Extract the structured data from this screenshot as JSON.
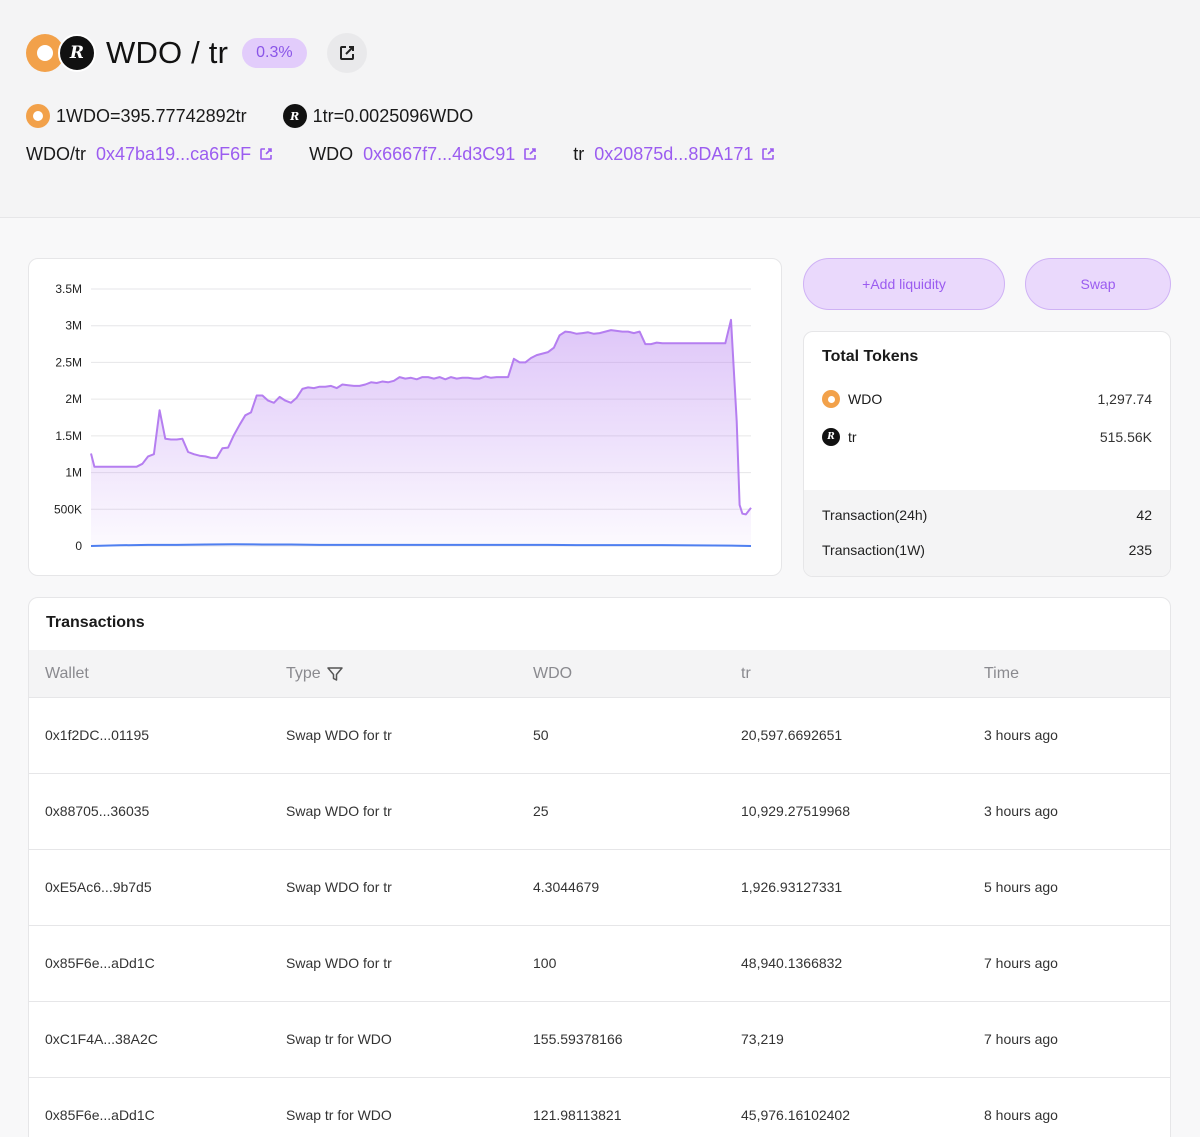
{
  "pair": {
    "title": "WDO / tr",
    "fee": "0.3%",
    "rate_wdo": "1WDO=395.77742892tr",
    "rate_tr": "1tr=0.0025096WDO",
    "token_tr_logo": "R",
    "addresses": [
      {
        "label": "WDO/tr",
        "value": "0x47ba19...ca6F6F"
      },
      {
        "label": "WDO",
        "value": "0x6667f7...4d3C91"
      },
      {
        "label": "tr",
        "value": "0x20875d...8DA171"
      }
    ]
  },
  "actions": {
    "add_liquidity": "+Add liquidity",
    "swap": "Swap"
  },
  "total_tokens": {
    "title": "Total Tokens",
    "items": [
      {
        "name": "WDO",
        "value": "1,297.74"
      },
      {
        "name": "tr",
        "value": "515.56K"
      }
    ],
    "stats": [
      {
        "label": "Transaction(24h)",
        "value": "42"
      },
      {
        "label": "Transaction(1W)",
        "value": "235"
      }
    ]
  },
  "chart_data": {
    "type": "area",
    "ylim": [
      0,
      3500000
    ],
    "y_ticks": [
      "0",
      "500K",
      "1M",
      "1.5M",
      "2M",
      "2.5M",
      "3M",
      "3.5M"
    ],
    "grid": true,
    "colors": {
      "series1": "#b57ef0",
      "series2": "#4f7ff0"
    },
    "series": [
      {
        "values": [
          1260000,
          1080000,
          1080000,
          1080000,
          1080000,
          1080000,
          1080000,
          1080000,
          1080000,
          1080000,
          1120000,
          1220000,
          1250000,
          1850000,
          1460000,
          1450000,
          1450000,
          1460000,
          1280000,
          1250000,
          1230000,
          1220000,
          1200000,
          1200000,
          1330000,
          1340000,
          1510000,
          1650000,
          1780000,
          1820000,
          2050000,
          2050000,
          1980000,
          1950000,
          2030000,
          1980000,
          1950000,
          2020000,
          2140000,
          2160000,
          2150000,
          2170000,
          2170000,
          2180000,
          2150000,
          2200000,
          2190000,
          2180000,
          2180000,
          2200000,
          2230000,
          2220000,
          2240000,
          2230000,
          2250000,
          2300000,
          2280000,
          2290000,
          2270000,
          2300000,
          2300000,
          2280000,
          2300000,
          2270000,
          2300000,
          2280000,
          2290000,
          2290000,
          2280000,
          2280000,
          2310000,
          2290000,
          2300000,
          2300000,
          2300000,
          2550000,
          2500000,
          2500000,
          2560000,
          2600000,
          2620000,
          2640000,
          2700000,
          2870000,
          2920000,
          2910000,
          2890000,
          2900000,
          2910000,
          2890000,
          2900000,
          2920000,
          2940000,
          2930000,
          2920000,
          2920000,
          2900000,
          2920000,
          2750000,
          2750000,
          2770000,
          2760000,
          2760000,
          2760000,
          2760000,
          2760000,
          2760000,
          2760000,
          2760000,
          2760000,
          2760000,
          2760000,
          2760000,
          3080000,
          1700000,
          560000,
          440000,
          430000,
          520000
        ],
        "x": [
          0,
          0.6,
          1,
          2,
          3,
          4,
          5,
          6,
          7,
          8,
          9,
          10,
          11,
          12,
          13,
          14,
          15,
          16,
          17,
          18,
          19,
          20,
          21,
          22,
          23,
          24,
          25,
          26,
          27,
          28,
          29,
          30,
          31,
          32,
          33,
          34,
          35,
          36,
          37,
          38,
          39,
          40,
          41,
          42,
          43,
          44,
          45,
          46,
          47,
          48,
          49,
          50,
          51,
          52,
          53,
          54,
          55,
          56,
          57,
          58,
          59,
          60,
          61,
          62,
          63,
          64,
          65,
          66,
          67,
          68,
          69,
          70,
          71,
          72,
          73,
          74,
          75,
          76,
          77,
          78,
          79,
          80,
          81,
          82,
          83,
          84,
          85,
          86,
          87,
          88,
          89,
          90,
          91,
          92,
          93,
          94,
          95,
          96,
          97,
          98,
          99,
          100,
          101,
          102,
          103,
          104,
          105,
          106,
          107,
          108,
          109,
          110,
          111,
          112,
          113,
          113.5,
          114,
          114.6,
          115.5
        ]
      },
      {
        "values": [
          0,
          10000,
          15000,
          15000,
          20000,
          25000,
          20000,
          20000,
          15000,
          15000,
          15000,
          15000,
          15000,
          15000,
          15000,
          15000,
          15000,
          12000,
          12000,
          12000,
          12000,
          5000,
          0
        ],
        "x": [
          0,
          5,
          10,
          15,
          20,
          25,
          30,
          35,
          40,
          45,
          50,
          55,
          60,
          65,
          70,
          75,
          80,
          85,
          90,
          95,
          100,
          112,
          115.5
        ]
      }
    ]
  },
  "transactions": {
    "title": "Transactions",
    "columns": [
      "Wallet",
      "Type",
      "WDO",
      "tr",
      "Time"
    ],
    "rows": [
      {
        "wallet": "0x1f2DC...01195",
        "type": "Swap WDO for tr",
        "wdo": "50",
        "tr": "20,597.6692651",
        "time": "3 hours ago"
      },
      {
        "wallet": "0x88705...36035",
        "type": "Swap WDO for tr",
        "wdo": "25",
        "tr": "10,929.27519968",
        "time": "3 hours ago"
      },
      {
        "wallet": "0xE5Ac6...9b7d5",
        "type": "Swap WDO for tr",
        "wdo": "4.3044679",
        "tr": "1,926.93127331",
        "time": "5 hours ago"
      },
      {
        "wallet": "0x85F6e...aDd1C",
        "type": "Swap WDO for tr",
        "wdo": "100",
        "tr": "48,940.1366832",
        "time": "7 hours ago"
      },
      {
        "wallet": "0xC1F4A...38A2C",
        "type": "Swap tr for WDO",
        "wdo": "155.59378166",
        "tr": "73,219",
        "time": "7 hours ago"
      },
      {
        "wallet": "0x85F6e...aDd1C",
        "type": "Swap tr for WDO",
        "wdo": "121.98113821",
        "tr": "45,976.16102402",
        "time": "8 hours ago"
      }
    ]
  }
}
